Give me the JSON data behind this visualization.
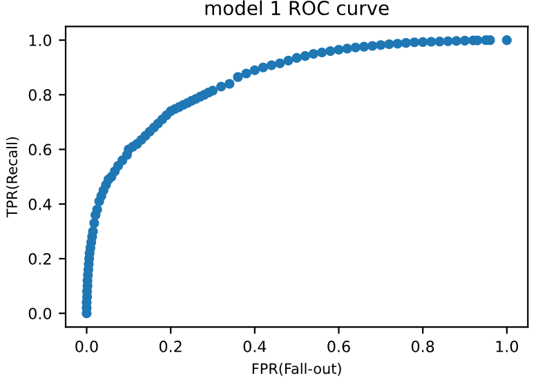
{
  "chart_data": {
    "type": "scatter",
    "title": "model 1 ROC curve",
    "xlabel": "FPR(Fall-out)",
    "ylabel": "TPR(Recall)",
    "x": [
      0,
      0,
      0,
      0.001,
      0.001,
      0.002,
      0.002,
      0.003,
      0.004,
      0.005,
      0.006,
      0.007,
      0.009,
      0.011,
      0.013,
      0.015,
      0.018,
      0.021,
      0.025,
      0.03,
      0.035,
      0.04,
      0.046,
      0.052,
      0.059,
      0.067,
      0.075,
      0.085,
      0.096,
      0.1,
      0.11,
      0.12,
      0.13,
      0.14,
      0.15,
      0.16,
      0.17,
      0.18,
      0.19,
      0.2,
      0.21,
      0.22,
      0.23,
      0.24,
      0.25,
      0.26,
      0.27,
      0.28,
      0.29,
      0.3,
      0.32,
      0.34,
      0.36,
      0.38,
      0.4,
      0.42,
      0.44,
      0.46,
      0.48,
      0.5,
      0.52,
      0.54,
      0.56,
      0.58,
      0.6,
      0.62,
      0.64,
      0.66,
      0.68,
      0.7,
      0.72,
      0.74,
      0.76,
      0.78,
      0.8,
      0.82,
      0.84,
      0.86,
      0.88,
      0.9,
      0.92,
      0.93,
      0.95,
      0.96,
      1.0
    ],
    "values": [
      0,
      0.02,
      0.04,
      0.06,
      0.08,
      0.1,
      0.12,
      0.14,
      0.16,
      0.18,
      0.2,
      0.22,
      0.24,
      0.26,
      0.28,
      0.3,
      0.33,
      0.36,
      0.38,
      0.41,
      0.43,
      0.45,
      0.47,
      0.49,
      0.5,
      0.52,
      0.54,
      0.56,
      0.58,
      0.6,
      0.61,
      0.62,
      0.635,
      0.65,
      0.665,
      0.68,
      0.695,
      0.71,
      0.725,
      0.74,
      0.748,
      0.755,
      0.763,
      0.77,
      0.778,
      0.785,
      0.793,
      0.8,
      0.808,
      0.815,
      0.83,
      0.84,
      0.865,
      0.878,
      0.89,
      0.9,
      0.908,
      0.915,
      0.925,
      0.935,
      0.942,
      0.95,
      0.955,
      0.96,
      0.965,
      0.969,
      0.973,
      0.976,
      0.979,
      0.982,
      0.985,
      0.987,
      0.99,
      0.992,
      0.993,
      0.994,
      0.995,
      0.996,
      0.997,
      0.998,
      0.999,
      0.999,
      1.0,
      1.0,
      1.0
    ],
    "color": "#1f77b4",
    "marker": "circle",
    "xlim": [
      -0.05,
      1.05
    ],
    "ylim": [
      -0.05,
      1.05
    ],
    "xticks": [
      {
        "value": 0,
        "label": "0.0"
      },
      0.2,
      0.4,
      0.6,
      0.8,
      {
        "value": 1,
        "label": "1.0"
      }
    ],
    "yticks": [
      {
        "value": 0,
        "label": "0.0"
      },
      0.2,
      0.4,
      0.6,
      0.8,
      {
        "value": 1,
        "label": "1.0"
      }
    ],
    "grid": false
  }
}
